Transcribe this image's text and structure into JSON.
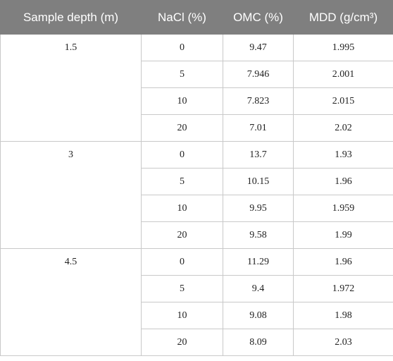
{
  "table": {
    "header": [
      "Sample depth (m)",
      "NaCl (%)",
      "OMC (%)",
      "MDD (g/cm³)"
    ],
    "groups": [
      {
        "depth": "1.5",
        "rows": [
          [
            "0",
            "9.47",
            "1.995"
          ],
          [
            "5",
            "7.946",
            "2.001"
          ],
          [
            "10",
            "7.823",
            "2.015"
          ],
          [
            "20",
            "7.01",
            "2.02"
          ]
        ]
      },
      {
        "depth": "3",
        "rows": [
          [
            "0",
            "13.7",
            "1.93"
          ],
          [
            "5",
            "10.15",
            "1.96"
          ],
          [
            "10",
            "9.95",
            "1.959"
          ],
          [
            "20",
            "9.58",
            "1.99"
          ]
        ]
      },
      {
        "depth": "4.5",
        "rows": [
          [
            "0",
            "11.29",
            "1.96"
          ],
          [
            "5",
            "9.4",
            "1.972"
          ],
          [
            "10",
            "9.08",
            "1.98"
          ],
          [
            "20",
            "8.09",
            "2.03"
          ]
        ]
      }
    ]
  }
}
